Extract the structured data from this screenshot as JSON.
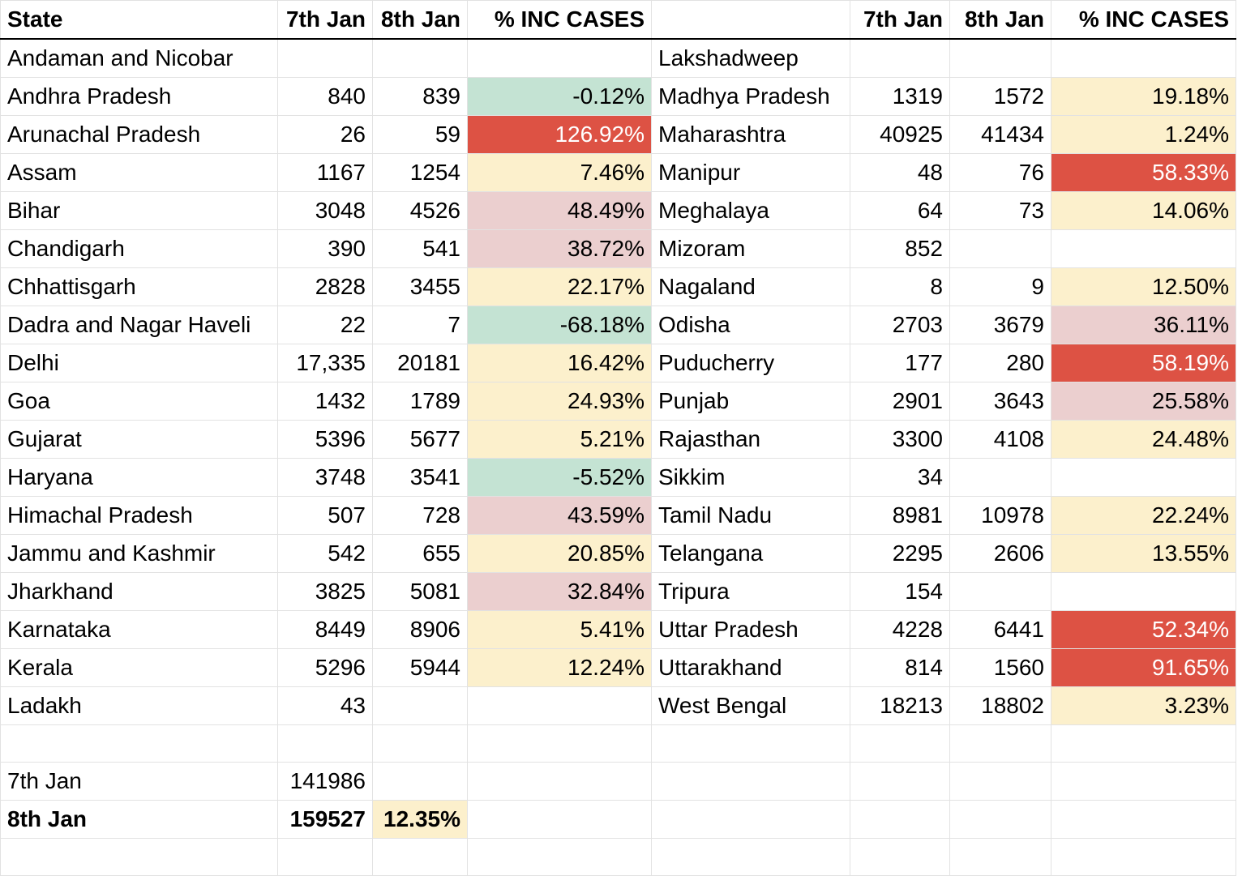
{
  "headers": {
    "state": "State",
    "jan7": "7th Jan",
    "jan8": "8th Jan",
    "inc": "% INC CASES"
  },
  "left": [
    {
      "state": "Andaman and Nicobar",
      "jan7": "",
      "jan8": "",
      "inc": "",
      "color": ""
    },
    {
      "state": "Andhra Pradesh",
      "jan7": "840",
      "jan8": "839",
      "inc": "-0.12%",
      "color": "green"
    },
    {
      "state": "Arunachal Pradesh",
      "jan7": "26",
      "jan8": "59",
      "inc": "126.92%",
      "color": "red"
    },
    {
      "state": "Assam",
      "jan7": "1167",
      "jan8": "1254",
      "inc": "7.46%",
      "color": "yellow"
    },
    {
      "state": "Bihar",
      "jan7": "3048",
      "jan8": "4526",
      "inc": "48.49%",
      "color": "pink"
    },
    {
      "state": "Chandigarh",
      "jan7": "390",
      "jan8": "541",
      "inc": "38.72%",
      "color": "pink"
    },
    {
      "state": "Chhattisgarh",
      "jan7": "2828",
      "jan8": "3455",
      "inc": "22.17%",
      "color": "yellow"
    },
    {
      "state": "Dadra and Nagar Haveli",
      "jan7": "22",
      "jan8": "7",
      "inc": "-68.18%",
      "color": "green"
    },
    {
      "state": "Delhi",
      "jan7": "17,335",
      "jan8": "20181",
      "inc": "16.42%",
      "color": "yellow"
    },
    {
      "state": "Goa",
      "jan7": "1432",
      "jan8": "1789",
      "inc": "24.93%",
      "color": "yellow"
    },
    {
      "state": "Gujarat",
      "jan7": "5396",
      "jan8": "5677",
      "inc": "5.21%",
      "color": "yellow"
    },
    {
      "state": "Haryana",
      "jan7": "3748",
      "jan8": "3541",
      "inc": "-5.52%",
      "color": "green"
    },
    {
      "state": "Himachal Pradesh",
      "jan7": "507",
      "jan8": "728",
      "inc": "43.59%",
      "color": "pink"
    },
    {
      "state": "Jammu and Kashmir",
      "jan7": "542",
      "jan8": "655",
      "inc": "20.85%",
      "color": "yellow"
    },
    {
      "state": "Jharkhand",
      "jan7": "3825",
      "jan8": "5081",
      "inc": "32.84%",
      "color": "pink"
    },
    {
      "state": "Karnataka",
      "jan7": "8449",
      "jan8": "8906",
      "inc": "5.41%",
      "color": "yellow"
    },
    {
      "state": "Kerala",
      "jan7": "5296",
      "jan8": "5944",
      "inc": "12.24%",
      "color": "yellow"
    },
    {
      "state": "Ladakh",
      "jan7": "43",
      "jan8": "",
      "inc": "",
      "color": ""
    }
  ],
  "right": [
    {
      "state": "Lakshadweep",
      "jan7": "",
      "jan8": "",
      "inc": "",
      "color": ""
    },
    {
      "state": "Madhya Pradesh",
      "jan7": "1319",
      "jan8": "1572",
      "inc": "19.18%",
      "color": "yellow"
    },
    {
      "state": "Maharashtra",
      "jan7": "40925",
      "jan8": "41434",
      "inc": "1.24%",
      "color": "yellow"
    },
    {
      "state": "Manipur",
      "jan7": "48",
      "jan8": "76",
      "inc": "58.33%",
      "color": "red"
    },
    {
      "state": "Meghalaya",
      "jan7": "64",
      "jan8": "73",
      "inc": "14.06%",
      "color": "yellow"
    },
    {
      "state": "Mizoram",
      "jan7": "852",
      "jan8": "",
      "inc": "",
      "color": ""
    },
    {
      "state": "Nagaland",
      "jan7": "8",
      "jan8": "9",
      "inc": "12.50%",
      "color": "yellow"
    },
    {
      "state": "Odisha",
      "jan7": "2703",
      "jan8": "3679",
      "inc": "36.11%",
      "color": "pink"
    },
    {
      "state": "Puducherry",
      "jan7": "177",
      "jan8": "280",
      "inc": "58.19%",
      "color": "red"
    },
    {
      "state": "Punjab",
      "jan7": "2901",
      "jan8": "3643",
      "inc": "25.58%",
      "color": "pink"
    },
    {
      "state": "Rajasthan",
      "jan7": "3300",
      "jan8": "4108",
      "inc": "24.48%",
      "color": "yellow"
    },
    {
      "state": "Sikkim",
      "jan7": "34",
      "jan8": "",
      "inc": "",
      "color": ""
    },
    {
      "state": "Tamil Nadu",
      "jan7": "8981",
      "jan8": "10978",
      "inc": "22.24%",
      "color": "yellow"
    },
    {
      "state": "Telangana",
      "jan7": "2295",
      "jan8": "2606",
      "inc": "13.55%",
      "color": "yellow"
    },
    {
      "state": "Tripura",
      "jan7": "154",
      "jan8": "",
      "inc": "",
      "color": ""
    },
    {
      "state": "Uttar Pradesh",
      "jan7": "4228",
      "jan8": "6441",
      "inc": "52.34%",
      "color": "red"
    },
    {
      "state": "Uttarakhand",
      "jan7": "814",
      "jan8": "1560",
      "inc": "91.65%",
      "color": "red"
    },
    {
      "state": "West Bengal",
      "jan7": "18213",
      "jan8": "18802",
      "inc": "3.23%",
      "color": "yellow"
    }
  ],
  "totals": [
    {
      "label": "7th Jan",
      "value": "141986",
      "pct": "",
      "bold": false,
      "color": ""
    },
    {
      "label": "8th Jan",
      "value": "159527",
      "pct": "12.35%",
      "bold": true,
      "color": "yellow"
    }
  ],
  "colors": {
    "green": "#c4e3d3",
    "yellow": "#fcf0cc",
    "pink": "#ebcfcf",
    "red": "#dd5244",
    "gridline": "#e2e2e2",
    "header_rule": "#000000"
  }
}
